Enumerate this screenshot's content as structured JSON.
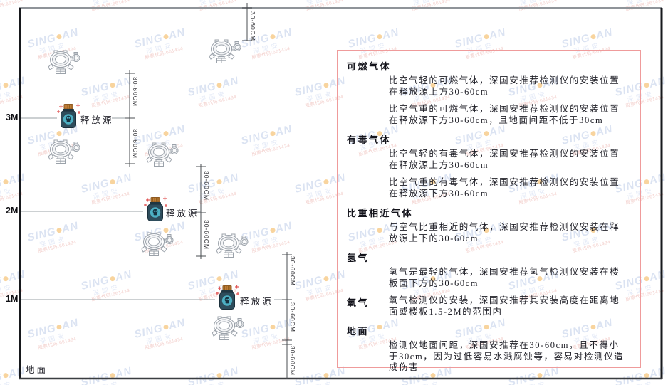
{
  "watermark": {
    "prefix": "SING",
    "suffix": "AN",
    "cjk": "深国安",
    "red_text": "股票代码:661434"
  },
  "diagram": {
    "axis_labels": [
      {
        "text": "3M"
      },
      {
        "text": "2M"
      },
      {
        "text": "1M"
      }
    ],
    "ground_label": "地面",
    "release_source_label": "释放源",
    "dimension_label": "30-60CM"
  },
  "panel": {
    "sections": [
      {
        "heading": "可燃气体",
        "paragraphs": [
          "比空气轻的可燃气体，深国安推荐检测仪的安装位置在释放源上方30-60cm",
          "比空气重的可燃气体，深国安推荐检测仪的安装位置在释放源下方30-60cm，且地面间距不低于30cm"
        ]
      },
      {
        "heading": "有毒气体",
        "paragraphs": [
          "比空气轻的有毒气体，深国安推荐检测仪的安装位置在释放源上方30-60cm",
          "比空气重的有毒气体，深国安推荐检测仪的安装位置在释放源下方30-60cm"
        ]
      },
      {
        "heading": "比重相近气体",
        "paragraphs": [
          "与空气比重相近的气体，深国安推荐检测仪安装在释放源上下的30-60cm"
        ]
      },
      {
        "heading": "氢气",
        "paragraphs": [
          "氢气是最轻的气体，深国安推荐氢气检测仪安装在楼板面下方的30-60cm"
        ]
      },
      {
        "heading": "氧气",
        "inline": true,
        "paragraphs": [
          "氧气检测仪的安装，深国安推荐其安装高度在距离地面或楼板1.5-2M的范围内"
        ]
      },
      {
        "heading": "地面",
        "paragraphs": [
          "检测仪地面间距，深国安推荐在30-60cm，且不得小于30cm，因为过低容易水溅腐蚀等，容易对检测仪造成伤害"
        ]
      }
    ]
  }
}
